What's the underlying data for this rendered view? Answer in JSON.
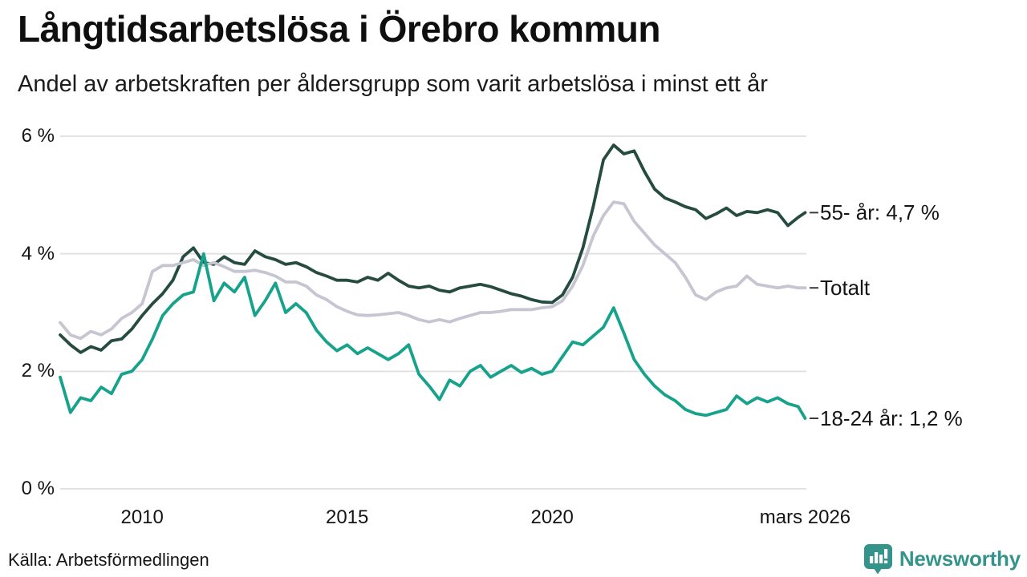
{
  "header": {
    "title": "Långtidsarbetslösa i Örebro kommun",
    "subtitle": "Andel av arbetskraften per åldersgrupp som varit arbetslösa i minst ett år"
  },
  "chart_data": {
    "type": "line",
    "title": "Långtidsarbetslösa i Örebro kommun",
    "subtitle": "Andel av arbetskraften per åldersgrupp som varit arbetslösa i minst ett år",
    "unit": "% av arbetskraften",
    "grid": true,
    "legend_position": "right-of-line-ends",
    "x_axis": {
      "min": 2008.0,
      "max": 2026.2,
      "ticks": [
        {
          "x": 2010,
          "label": "2010"
        },
        {
          "x": 2015,
          "label": "2015"
        },
        {
          "x": 2020,
          "label": "2020"
        },
        {
          "x": 2026.17,
          "label": "mars 2026"
        }
      ]
    },
    "y_axis": {
      "min": 0,
      "max": 6,
      "ticks": [
        {
          "v": 6,
          "label": "6 %"
        },
        {
          "v": 4,
          "label": "4 %"
        },
        {
          "v": 2,
          "label": "2 %"
        },
        {
          "v": 0,
          "label": "0 %"
        }
      ]
    },
    "x_start": 2008.0,
    "x_step": 0.25,
    "x_end": 2026.17,
    "series": [
      {
        "name": "55- år",
        "label": "55- år: 4,7 %",
        "last_value": 4.7,
        "color": "#264B40",
        "values": [
          2.62,
          2.45,
          2.32,
          2.42,
          2.36,
          2.52,
          2.55,
          2.72,
          2.95,
          3.15,
          3.32,
          3.55,
          3.95,
          4.1,
          3.85,
          3.82,
          3.95,
          3.85,
          3.82,
          4.05,
          3.95,
          3.9,
          3.82,
          3.85,
          3.78,
          3.68,
          3.62,
          3.55,
          3.55,
          3.52,
          3.6,
          3.55,
          3.67,
          3.55,
          3.45,
          3.42,
          3.45,
          3.38,
          3.35,
          3.42,
          3.45,
          3.48,
          3.44,
          3.38,
          3.32,
          3.28,
          3.22,
          3.18,
          3.17,
          3.3,
          3.6,
          4.1,
          4.8,
          5.6,
          5.85,
          5.7,
          5.75,
          5.4,
          5.1,
          4.95,
          4.88,
          4.8,
          4.75,
          4.6,
          4.68,
          4.78,
          4.65,
          4.72,
          4.7,
          4.75,
          4.7,
          4.48,
          4.62,
          4.7
        ]
      },
      {
        "name": "Totalt",
        "label": "Totalt",
        "last_value": 3.4,
        "color": "#C6C5D2",
        "values": [
          2.83,
          2.62,
          2.56,
          2.68,
          2.62,
          2.72,
          2.9,
          3.0,
          3.15,
          3.7,
          3.8,
          3.8,
          3.85,
          3.9,
          3.8,
          3.85,
          3.78,
          3.7,
          3.7,
          3.72,
          3.68,
          3.62,
          3.52,
          3.52,
          3.45,
          3.3,
          3.22,
          3.1,
          3.02,
          2.96,
          2.95,
          2.96,
          2.98,
          3.0,
          2.95,
          2.88,
          2.84,
          2.88,
          2.84,
          2.9,
          2.95,
          3.0,
          3.0,
          3.02,
          3.05,
          3.05,
          3.05,
          3.08,
          3.1,
          3.2,
          3.45,
          3.8,
          4.3,
          4.65,
          4.88,
          4.85,
          4.55,
          4.35,
          4.15,
          4.0,
          3.85,
          3.6,
          3.3,
          3.22,
          3.35,
          3.42,
          3.45,
          3.62,
          3.48,
          3.45,
          3.42,
          3.45,
          3.42,
          3.42
        ]
      },
      {
        "name": "18-24 år",
        "label": "18-24 år: 1,2 %",
        "last_value": 1.2,
        "color": "#17A28B",
        "values": [
          1.9,
          1.3,
          1.55,
          1.5,
          1.73,
          1.62,
          1.95,
          2.0,
          2.2,
          2.55,
          2.95,
          3.15,
          3.3,
          3.35,
          4.0,
          3.2,
          3.5,
          3.35,
          3.6,
          2.95,
          3.2,
          3.5,
          3.0,
          3.15,
          3.0,
          2.7,
          2.5,
          2.35,
          2.45,
          2.3,
          2.4,
          2.3,
          2.2,
          2.3,
          2.45,
          1.95,
          1.75,
          1.52,
          1.85,
          1.75,
          2.0,
          2.1,
          1.9,
          2.0,
          2.1,
          1.98,
          2.05,
          1.95,
          2.0,
          2.25,
          2.5,
          2.45,
          2.6,
          2.75,
          3.08,
          2.65,
          2.2,
          1.95,
          1.75,
          1.6,
          1.5,
          1.35,
          1.28,
          1.25,
          1.3,
          1.35,
          1.58,
          1.45,
          1.55,
          1.48,
          1.55,
          1.45,
          1.4,
          1.2
        ]
      }
    ],
    "colors": {
      "grid": "#E2E2E5",
      "label_dash": "#3A3A3A",
      "text": "#141414"
    }
  },
  "footer": {
    "source": "Källa: Arbetsförmedlingen",
    "brand": {
      "name": "Newsworthy",
      "color": "#34938B",
      "icon": "bar-chart-speech-bubble"
    }
  }
}
